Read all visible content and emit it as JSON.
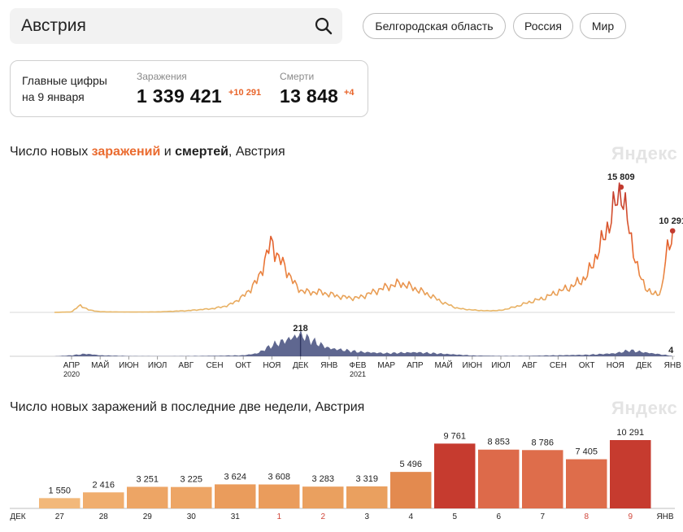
{
  "search": {
    "query": "Австрия"
  },
  "regions": [
    "Белгородская область",
    "Россия",
    "Мир"
  ],
  "summary": {
    "label_line1": "Главные цифры",
    "label_line2": "на 9 января",
    "infections_label": "Заражения",
    "infections_value": "1 339 421",
    "infections_delta": "+10 291",
    "deaths_label": "Смерти",
    "deaths_value": "13 848",
    "deaths_delta": "+4"
  },
  "chart1": {
    "title_pre": "Число новых ",
    "title_inf": "заражений",
    "title_mid": " и ",
    "title_death": "смертей",
    "title_post": ", Австрия",
    "watermark": "Яндекс",
    "peak_label": "15 809",
    "last_label": "10 291",
    "deaths_peak_label": "218",
    "deaths_last_label": "4",
    "months": [
      {
        "m": "АПР",
        "y": "2020"
      },
      {
        "m": "МАЙ"
      },
      {
        "m": "ИЮН"
      },
      {
        "m": "ИЮЛ"
      },
      {
        "m": "АВГ"
      },
      {
        "m": "СЕН"
      },
      {
        "m": "ОКТ"
      },
      {
        "m": "НОЯ"
      },
      {
        "m": "ДЕК"
      },
      {
        "m": "ЯНВ"
      },
      {
        "m": "ФЕВ",
        "y": "2021"
      },
      {
        "m": "МАР"
      },
      {
        "m": "АПР"
      },
      {
        "m": "МАЙ"
      },
      {
        "m": "ИЮН"
      },
      {
        "m": "ИЮЛ"
      },
      {
        "m": "АВГ"
      },
      {
        "m": "СЕН"
      },
      {
        "m": "ОКТ"
      },
      {
        "m": "НОЯ"
      },
      {
        "m": "ДЕК"
      },
      {
        "m": "ЯНВ"
      }
    ]
  },
  "chart2": {
    "title": "Число новых заражений в последние две недели, Австрия",
    "watermark": "Яндекс",
    "start_label": "ДЕК",
    "end_label": "ЯНВ"
  },
  "chart_data": [
    {
      "type": "area",
      "title": "Число новых заражений и смертей, Австрия",
      "series": [
        {
          "name": "заражений",
          "keyframes_month_index": [
            -0.6,
            0,
            0.3,
            0.6,
            1,
            2,
            3,
            4,
            5,
            5.5,
            6,
            6.5,
            7,
            7.2,
            7.5,
            7.8,
            8,
            8.3,
            8.6,
            9,
            9.5,
            10,
            10.5,
            11,
            11.5,
            12,
            12.5,
            13,
            13.5,
            14,
            14.5,
            15,
            15.5,
            16,
            16.5,
            17,
            17.5,
            18,
            18.5,
            19,
            19.2,
            19.5,
            19.7,
            19.8,
            20,
            20.3,
            20.6,
            20.8,
            21
          ],
          "values": [
            0,
            50,
            900,
            300,
            80,
            40,
            60,
            200,
            500,
            900,
            2000,
            4000,
            9000,
            7000,
            5500,
            3500,
            2800,
            2500,
            2600,
            2300,
            1900,
            1800,
            2500,
            3200,
            3700,
            3000,
            2200,
            1200,
            500,
            300,
            200,
            250,
            700,
            1300,
            1800,
            2600,
            3300,
            4500,
            8500,
            13500,
            15809,
            10000,
            7000,
            5000,
            3500,
            2200,
            2600,
            7500,
            10291
          ]
        },
        {
          "name": "смертей",
          "keyframes_month_index": [
            -0.6,
            0,
            0.5,
            1,
            2,
            3,
            4,
            5,
            6,
            6.5,
            7,
            7.5,
            8,
            8.3,
            8.6,
            9,
            10,
            11,
            12,
            13,
            14,
            15,
            16,
            17,
            18,
            19,
            19.5,
            20,
            21
          ],
          "values": [
            0,
            10,
            25,
            10,
            3,
            2,
            3,
            5,
            10,
            30,
            110,
            160,
            218,
            170,
            130,
            80,
            45,
            30,
            40,
            25,
            8,
            4,
            5,
            10,
            15,
            30,
            60,
            40,
            4
          ]
        }
      ],
      "annotations": [
        "15 809",
        "10 291",
        "218",
        "4"
      ]
    },
    {
      "type": "bar",
      "title": "Число новых заражений в последние две недели, Австрия",
      "categories": [
        "27",
        "28",
        "29",
        "30",
        "31",
        "1",
        "2",
        "3",
        "4",
        "5",
        "6",
        "7",
        "8",
        "9"
      ],
      "values": [
        1550,
        2416,
        3251,
        3225,
        3624,
        3608,
        3283,
        3319,
        5496,
        9761,
        8853,
        8786,
        7405,
        10291
      ],
      "value_labels": [
        "1 550",
        "2 416",
        "3 251",
        "3 225",
        "3 624",
        "3 608",
        "3 283",
        "3 319",
        "5 496",
        "9 761",
        "8 853",
        "8 786",
        "7 405",
        "10 291"
      ],
      "weekend_categories": [
        "1",
        "2",
        "8",
        "9"
      ],
      "ylim": [
        0,
        11000
      ]
    }
  ],
  "colors": {
    "accent_orange": "#ea6b2f",
    "infection_light": "#e8b96a",
    "infection_dark": "#c23a2e",
    "deaths": "#4e5684",
    "weekend_red": "#d0463a"
  }
}
